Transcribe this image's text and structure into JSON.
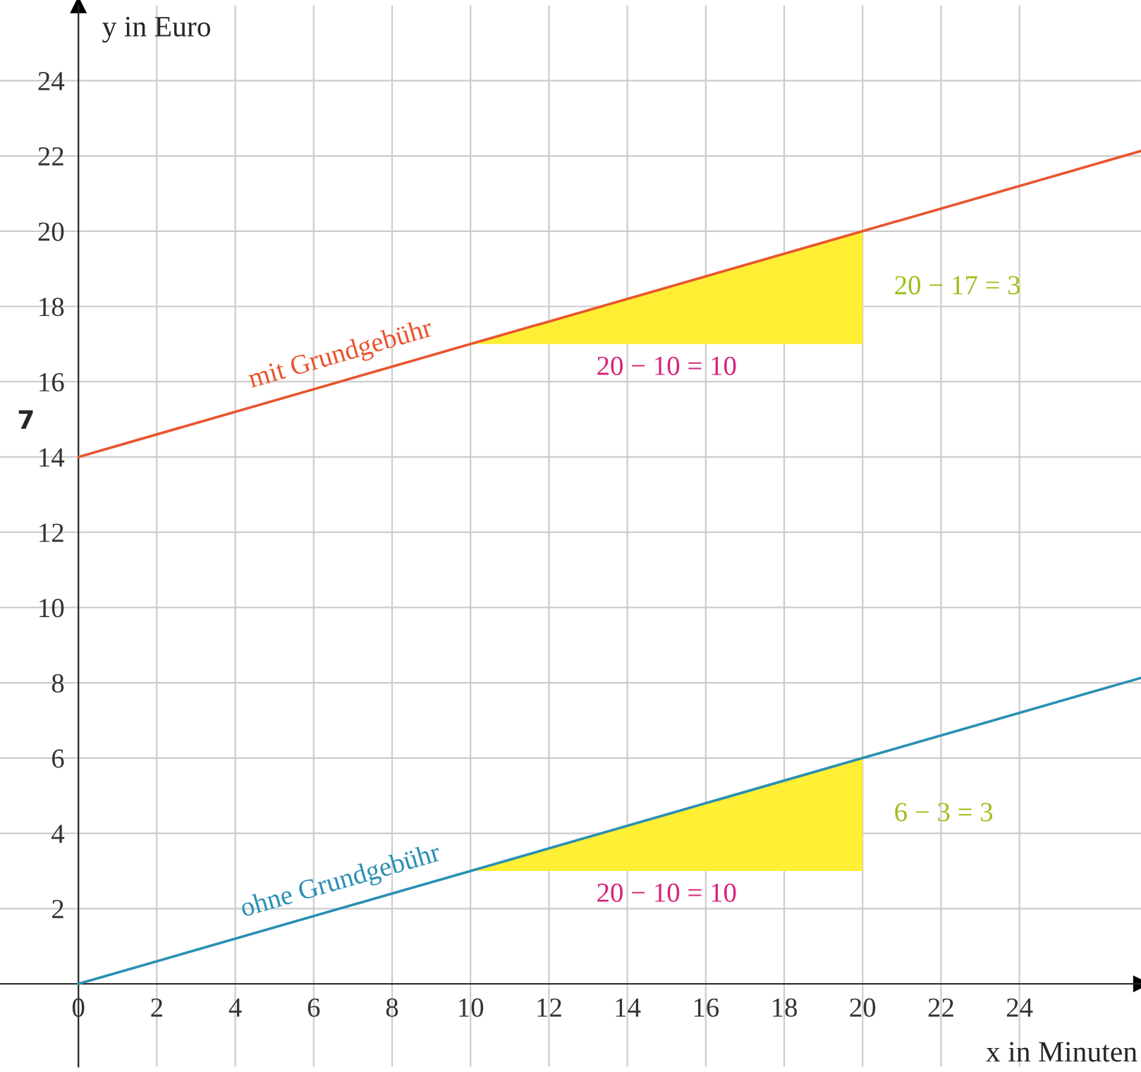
{
  "chart_data": {
    "type": "line",
    "xlabel": "x in Minuten",
    "ylabel": "y in Euro",
    "xlim": [
      -2,
      27.1
    ],
    "ylim": [
      -2.2,
      26
    ],
    "xticks": [
      0,
      2,
      4,
      6,
      8,
      10,
      12,
      14,
      16,
      18,
      20,
      22,
      24
    ],
    "yticks": [
      2,
      4,
      6,
      8,
      10,
      12,
      14,
      16,
      18,
      20,
      22,
      24
    ],
    "grid": true,
    "marker": "none",
    "line_style": "solid",
    "series": [
      {
        "name": "mit Grundgebühr",
        "color": "#e8552f",
        "x": [
          0,
          10,
          20,
          27.1
        ],
        "values": [
          14,
          17,
          20,
          22.13
        ],
        "lower": [
          null,
          17,
          17,
          null
        ],
        "upper": [
          null,
          17,
          20,
          null
        ]
      },
      {
        "name": "ohne Grundgebühr",
        "color": "#2a8fb3",
        "x": [
          0,
          10,
          20,
          27.1
        ],
        "values": [
          0,
          3,
          6,
          8.13
        ],
        "lower": [
          null,
          3,
          3,
          null
        ],
        "upper": [
          null,
          3,
          6,
          null
        ]
      }
    ],
    "annotations": [
      "20 − 10 = 10",
      "20 − 17 = 3",
      "20 − 10 = 10",
      "6 − 3 = 3",
      "7"
    ]
  }
}
